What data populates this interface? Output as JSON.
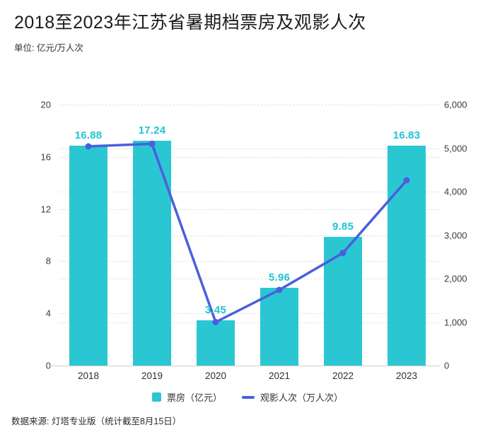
{
  "header": {
    "title": "2018至2023年江苏省暑期档票房及观影人次",
    "subtitle": "单位: 亿元/万人次"
  },
  "chart_data": {
    "type": "combo",
    "title": "2018至2023年江苏省暑期档票房及观影人次",
    "unit_label": "单位: 亿元/万人次",
    "categories": [
      "2018",
      "2019",
      "2020",
      "2021",
      "2022",
      "2023"
    ],
    "series": [
      {
        "name": "票房（亿元）",
        "type": "bar",
        "axis": "left",
        "color": "#2ac7d2",
        "label_color": "#1ec5d6",
        "values": [
          16.88,
          17.24,
          3.45,
          5.96,
          9.85,
          16.83
        ],
        "data_labels": [
          "16.88",
          "17.24",
          "3.45",
          "5.96",
          "9.85",
          "16.83"
        ]
      },
      {
        "name": "观影人次（万人次）",
        "type": "line",
        "axis": "right",
        "color": "#4a5fdc",
        "values": [
          5040,
          5100,
          1000,
          1740,
          2590,
          4260
        ]
      }
    ],
    "left_axis": {
      "min": 0,
      "max": 20,
      "ticks": [
        {
          "label": "20",
          "value": 20
        },
        {
          "label": "16",
          "value": 16
        },
        {
          "label": "12",
          "value": 12
        },
        {
          "label": "8",
          "value": 8
        },
        {
          "label": "4",
          "value": 4
        },
        {
          "label": "0",
          "value": 0
        }
      ]
    },
    "right_axis": {
      "min": 0,
      "max": 6000,
      "ticks": [
        {
          "label": "6,000",
          "value": 6000
        },
        {
          "label": "5,000",
          "value": 5000
        },
        {
          "label": "4,000",
          "value": 4000
        },
        {
          "label": "3,000",
          "value": 3000
        },
        {
          "label": "2,000",
          "value": 2000
        },
        {
          "label": "1,000",
          "value": 1000
        },
        {
          "label": "0",
          "value": 0
        }
      ]
    },
    "grid": "dashed horizontal gridlines for both axes",
    "legend_position": "bottom"
  },
  "legend": {
    "items": [
      {
        "label": "票房（亿元）",
        "swatch": "square"
      },
      {
        "label": "观影人次（万人次）",
        "swatch": "dash"
      }
    ]
  },
  "footer": {
    "source": "数据来源: 灯塔专业版（统计截至8月15日）"
  },
  "colors": {
    "bar": "#2ac7d2",
    "line": "#4a5fdc",
    "bar_label": "#1ec5d6",
    "grid": "#e3e3e3",
    "axis_text": "#3d3d3d",
    "baseline": "#cfcfcf"
  }
}
